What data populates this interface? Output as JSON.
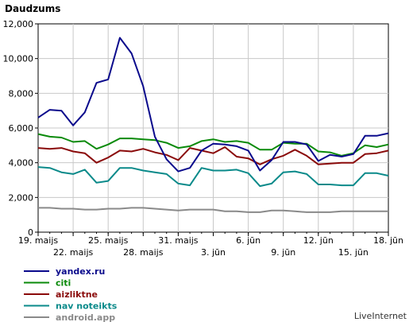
{
  "chart_data": {
    "type": "line",
    "title": "Daudzums",
    "footer": "LiveInternet",
    "ylim": [
      0,
      12000
    ],
    "y_ticks": [
      "0",
      "2,000",
      "4,000",
      "6,000",
      "8,000",
      "10,000",
      "12,000"
    ],
    "x_ticks_upper": [
      {
        "i": 0,
        "label": "19. maijs"
      },
      {
        "i": 6,
        "label": "25. maijs"
      },
      {
        "i": 12,
        "label": "31. maijs"
      },
      {
        "i": 18,
        "label": "6. jūn"
      },
      {
        "i": 24,
        "label": "12. jūn"
      },
      {
        "i": 30,
        "label": "18. jūn"
      }
    ],
    "x_ticks_lower": [
      {
        "i": 3,
        "label": "22. maijs"
      },
      {
        "i": 9,
        "label": "28. maijs"
      },
      {
        "i": 15,
        "label": "3. jūn"
      },
      {
        "i": 21,
        "label": "9. jūn"
      },
      {
        "i": 27,
        "label": "15. jūn"
      }
    ],
    "series": [
      {
        "name": "yandex.ru",
        "color": "#0a0a8c",
        "values": [
          6600,
          7050,
          7000,
          6150,
          6900,
          8600,
          8800,
          11200,
          10300,
          8400,
          5500,
          4200,
          3500,
          3700,
          4700,
          5100,
          5050,
          4950,
          4700,
          3550,
          4150,
          5200,
          5200,
          5050,
          4100,
          4450,
          4350,
          4500,
          5550,
          5550,
          5700
        ]
      },
      {
        "name": "citi",
        "color": "#0a8a0a",
        "values": [
          5650,
          5500,
          5450,
          5200,
          5250,
          4800,
          5050,
          5400,
          5400,
          5350,
          5300,
          5150,
          4850,
          4950,
          5250,
          5350,
          5200,
          5250,
          5150,
          4750,
          4750,
          5150,
          5100,
          5100,
          4650,
          4600,
          4400,
          4550,
          5000,
          4900,
          5050
        ]
      },
      {
        "name": "aizliktne",
        "color": "#8a0a0a",
        "values": [
          4850,
          4800,
          4850,
          4650,
          4550,
          4000,
          4300,
          4700,
          4650,
          4800,
          4600,
          4450,
          4150,
          4850,
          4700,
          4550,
          4900,
          4350,
          4250,
          3900,
          4200,
          4400,
          4750,
          4400,
          3900,
          3950,
          4000,
          4000,
          4500,
          4550,
          4700
        ]
      },
      {
        "name": "nav noteikts",
        "color": "#0a8a8a",
        "values": [
          3750,
          3700,
          3450,
          3350,
          3600,
          2850,
          2950,
          3700,
          3700,
          3550,
          3450,
          3350,
          2800,
          2700,
          3700,
          3550,
          3550,
          3600,
          3400,
          2650,
          2800,
          3450,
          3500,
          3350,
          2750,
          2750,
          2700,
          2700,
          3400,
          3400,
          3250
        ]
      },
      {
        "name": "android.app",
        "color": "#8a8a8a",
        "values": [
          1400,
          1400,
          1350,
          1350,
          1300,
          1300,
          1350,
          1350,
          1400,
          1400,
          1350,
          1300,
          1250,
          1300,
          1300,
          1300,
          1200,
          1200,
          1150,
          1150,
          1250,
          1250,
          1200,
          1150,
          1150,
          1150,
          1200,
          1200,
          1200,
          1200,
          1200
        ]
      }
    ]
  }
}
